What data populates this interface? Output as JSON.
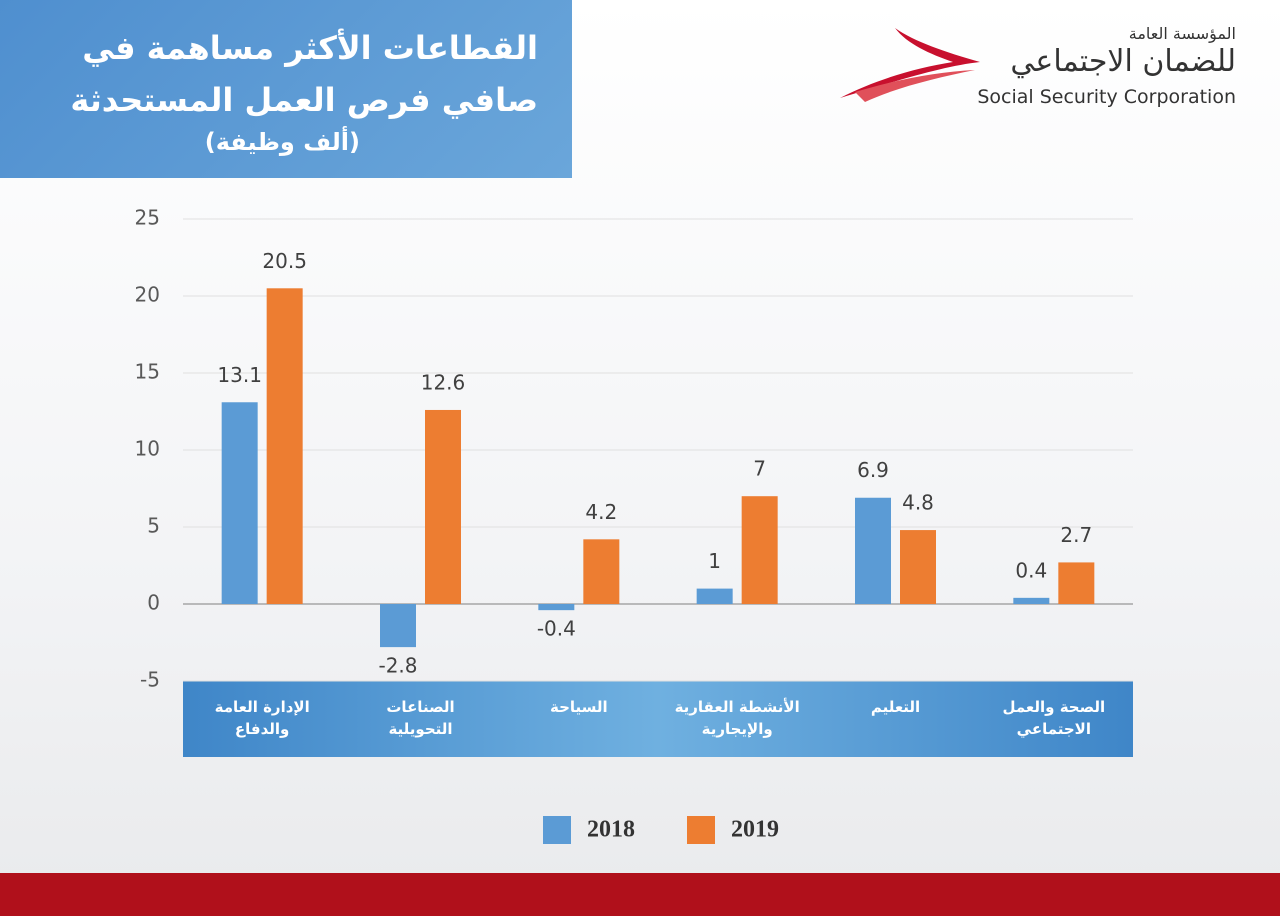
{
  "header": {
    "org_arabic_1": "المؤسسة العامة",
    "org_arabic_2": "للضمان الاجتماعي",
    "org_english": "Social Security Corporation"
  },
  "chart_data": {
    "type": "bar",
    "title": "القطاعات الأكثر مساهمة في صافي فرص العمل المستحدثة",
    "subtitle": "(ألف وظيفة)",
    "categories": [
      "الإدارة العامة والدفاع",
      "الصناعات التحويلية",
      "السياحة",
      "الأنشطة العقارية والإيجارية",
      "التعليم",
      "الصحة والعمل الاجتماعي"
    ],
    "series": [
      {
        "name": "2018",
        "color": "#5b9bd5",
        "values": [
          13.1,
          -2.8,
          -0.4,
          1,
          6.9,
          0.4
        ]
      },
      {
        "name": "2019",
        "color": "#ed7d31",
        "values": [
          20.5,
          12.6,
          4.2,
          7,
          4.8,
          2.7
        ]
      }
    ],
    "ylim": [
      -5,
      25
    ],
    "yticks": [
      -5,
      0,
      5,
      10,
      15,
      20,
      25
    ],
    "grid": true,
    "legend": "bottom"
  }
}
